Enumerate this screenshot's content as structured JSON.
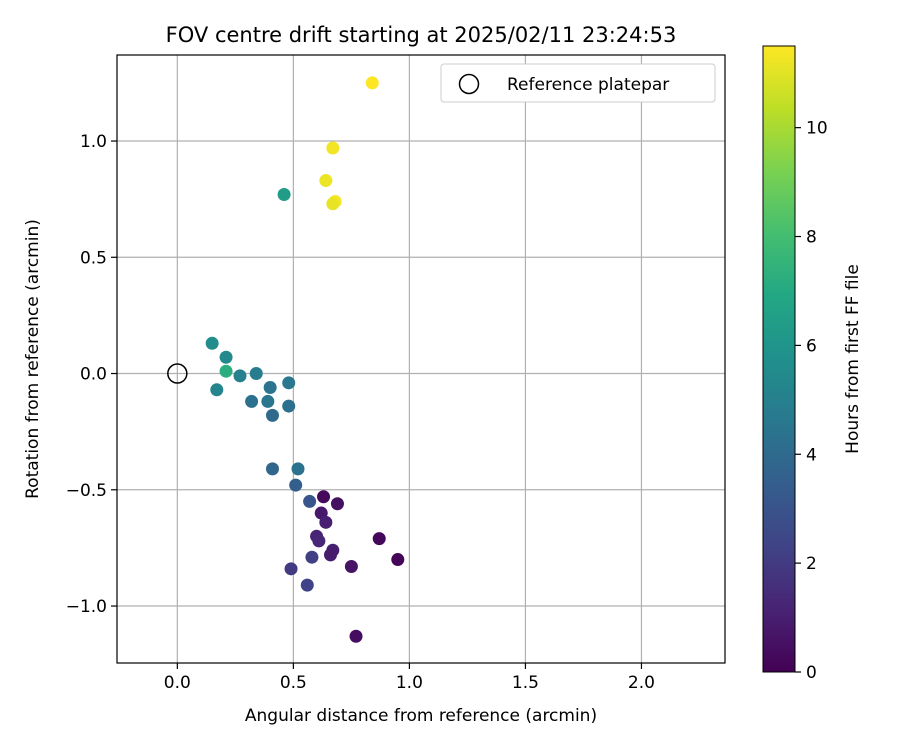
{
  "chart_data": {
    "type": "scatter",
    "title": "FOV centre drift starting at 2025/02/11 23:24:53",
    "xlabel": "Angular distance from reference (arcmin)",
    "ylabel": "Rotation from reference (arcmin)",
    "xlim": [
      -0.26,
      2.36
    ],
    "ylim": [
      -1.245,
      1.37
    ],
    "xticks": [
      0.0,
      0.5,
      1.0,
      1.5,
      2.0
    ],
    "xtick_labels": [
      "0.0",
      "0.5",
      "1.0",
      "1.5",
      "2.0"
    ],
    "yticks": [
      -1.0,
      -0.5,
      0.0,
      0.5,
      1.0
    ],
    "ytick_labels": [
      "−1.0",
      "−0.5",
      "0.0",
      "0.5",
      "1.0"
    ],
    "grid": true,
    "legend": {
      "position": "top-right",
      "entries": [
        "Reference platepar"
      ]
    },
    "reference_point": {
      "label": "Reference platepar",
      "x": 0.0,
      "y": 0.0
    },
    "colorbar": {
      "label": "Hours from first FF file",
      "range": [
        0,
        11.5
      ],
      "ticks": [
        0,
        2,
        4,
        6,
        8,
        10
      ],
      "tick_labels": [
        "0",
        "2",
        "4",
        "6",
        "8",
        "10"
      ],
      "colormap": "viridis"
    },
    "points": [
      {
        "x": 0.63,
        "y": -0.53,
        "c": 0.3
      },
      {
        "x": 0.69,
        "y": -0.56,
        "c": 0.5
      },
      {
        "x": 0.62,
        "y": -0.6,
        "c": 0.8
      },
      {
        "x": 0.64,
        "y": -0.64,
        "c": 1.0
      },
      {
        "x": 0.6,
        "y": -0.7,
        "c": 1.2
      },
      {
        "x": 0.61,
        "y": -0.72,
        "c": 1.3
      },
      {
        "x": 0.67,
        "y": -0.76,
        "c": 1.0
      },
      {
        "x": 0.66,
        "y": -0.78,
        "c": 0.9
      },
      {
        "x": 0.75,
        "y": -0.83,
        "c": 0.6
      },
      {
        "x": 0.87,
        "y": -0.71,
        "c": 0.2
      },
      {
        "x": 0.95,
        "y": -0.8,
        "c": 0.1
      },
      {
        "x": 0.77,
        "y": -1.13,
        "c": 0.4
      },
      {
        "x": 0.58,
        "y": -0.79,
        "c": 2.2
      },
      {
        "x": 0.49,
        "y": -0.84,
        "c": 2.0
      },
      {
        "x": 0.56,
        "y": -0.91,
        "c": 2.3
      },
      {
        "x": 0.57,
        "y": -0.55,
        "c": 3.1
      },
      {
        "x": 0.51,
        "y": -0.48,
        "c": 3.5
      },
      {
        "x": 0.41,
        "y": -0.41,
        "c": 3.8
      },
      {
        "x": 0.52,
        "y": -0.41,
        "c": 4.3
      },
      {
        "x": 0.41,
        "y": -0.18,
        "c": 4.0
      },
      {
        "x": 0.48,
        "y": -0.14,
        "c": 4.2
      },
      {
        "x": 0.32,
        "y": -0.12,
        "c": 4.3
      },
      {
        "x": 0.39,
        "y": -0.12,
        "c": 4.5
      },
      {
        "x": 0.4,
        "y": -0.06,
        "c": 4.4
      },
      {
        "x": 0.48,
        "y": -0.04,
        "c": 4.6
      },
      {
        "x": 0.34,
        "y": 0.0,
        "c": 4.8
      },
      {
        "x": 0.27,
        "y": -0.01,
        "c": 5.0
      },
      {
        "x": 0.17,
        "y": -0.07,
        "c": 5.2
      },
      {
        "x": 0.21,
        "y": 0.07,
        "c": 5.4
      },
      {
        "x": 0.15,
        "y": 0.13,
        "c": 5.6
      },
      {
        "x": 0.21,
        "y": 0.01,
        "c": 7.2
      },
      {
        "x": 0.46,
        "y": 0.77,
        "c": 6.4
      },
      {
        "x": 0.67,
        "y": 0.97,
        "c": 11.3
      },
      {
        "x": 0.64,
        "y": 0.83,
        "c": 11.2
      },
      {
        "x": 0.68,
        "y": 0.74,
        "c": 11.4
      },
      {
        "x": 0.67,
        "y": 0.73,
        "c": 11.1
      },
      {
        "x": 0.84,
        "y": 1.25,
        "c": 11.5
      }
    ]
  }
}
